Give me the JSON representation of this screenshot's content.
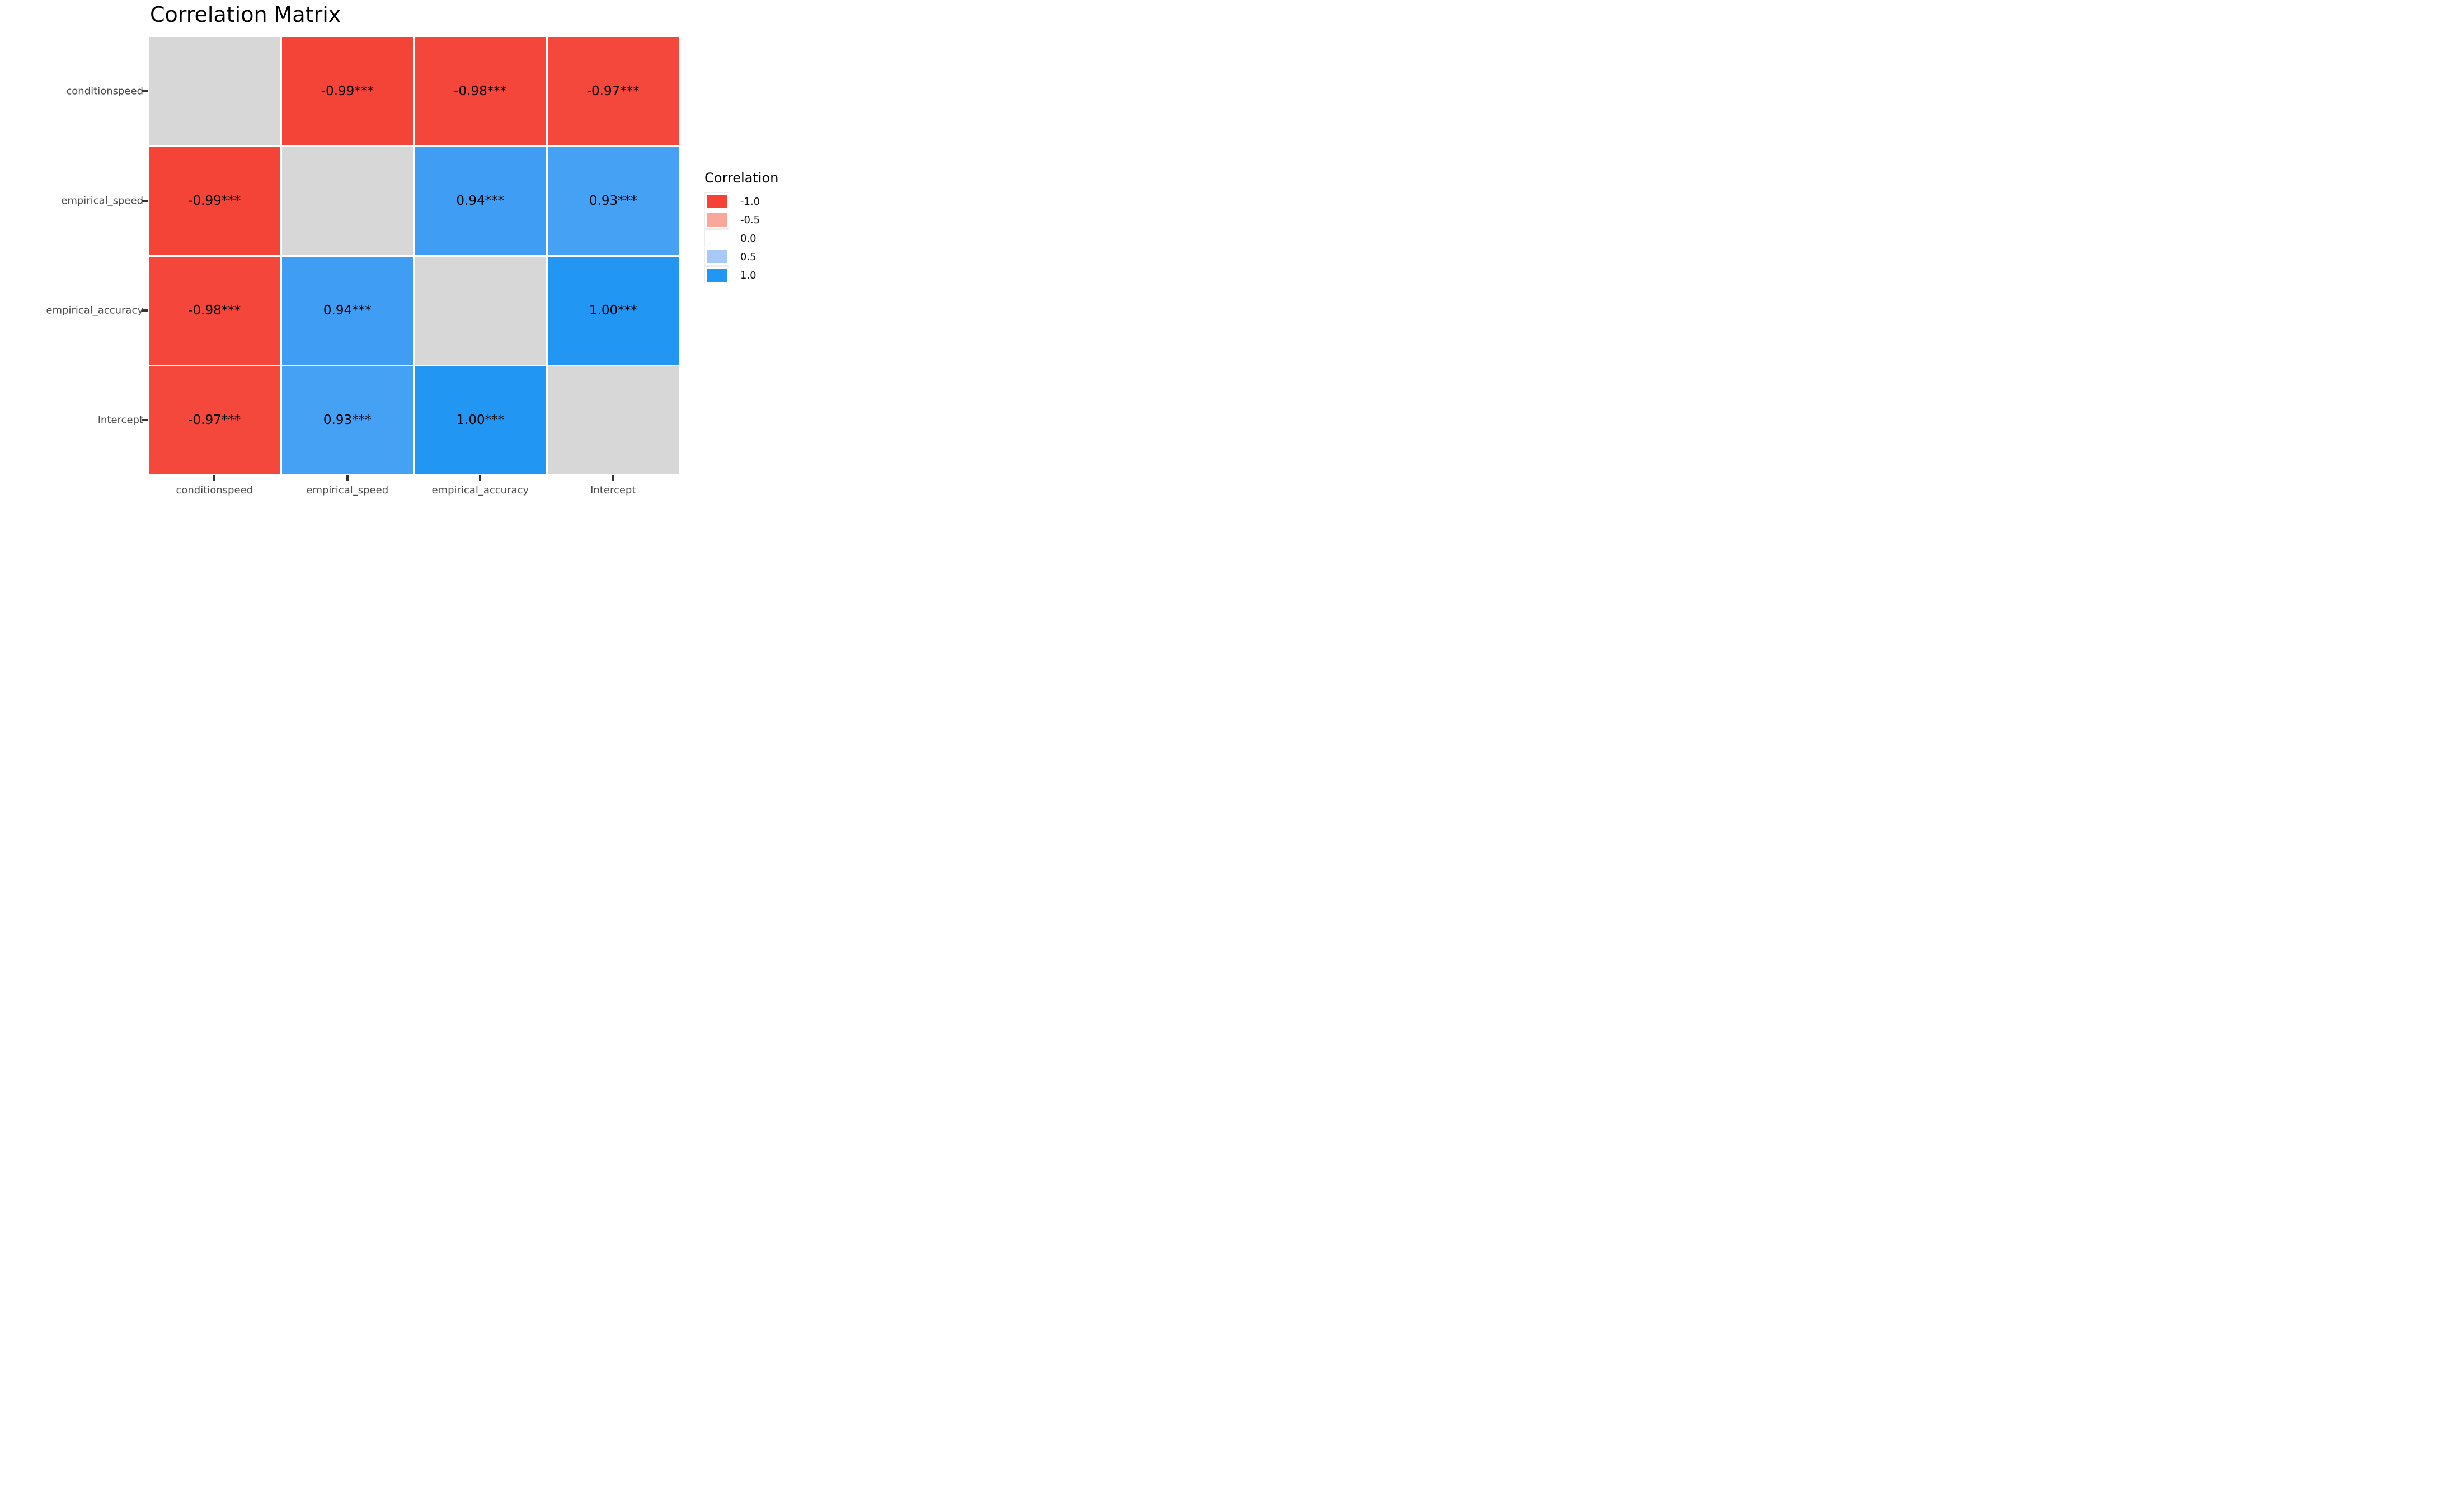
{
  "title": "Correlation Matrix",
  "legend": {
    "title": "Correlation",
    "entries": [
      {
        "label": "-1.0",
        "color": "#F44336"
      },
      {
        "label": "-0.5",
        "color": "#F9A79B"
      },
      {
        "label": "0.0",
        "color": "#FFFFFF"
      },
      {
        "label": "0.5",
        "color": "#A8C9F6"
      },
      {
        "label": "1.0",
        "color": "#2196F3"
      }
    ]
  },
  "colors": {
    "diagonal": "#D7D7D7",
    "negative_full": "#F44336",
    "positive_full": "#2196F3",
    "axis_text": "#4D4D4D",
    "cell_text": "#000000"
  },
  "chart_data": {
    "type": "heatmap",
    "title": "Correlation Matrix",
    "x_categories": [
      "conditionspeed",
      "empirical_speed",
      "empirical_accuracy",
      "Intercept"
    ],
    "y_categories": [
      "conditionspeed",
      "empirical_speed",
      "empirical_accuracy",
      "Intercept"
    ],
    "legend_title": "Correlation",
    "legend_ticks": [
      -1.0,
      -0.5,
      0.0,
      0.5,
      1.0
    ],
    "value_range": [
      -1.0,
      1.0
    ],
    "grid": false,
    "legend_position": "right",
    "cells": [
      [
        {
          "value": null,
          "label": "",
          "color": "#D7D7D7"
        },
        {
          "value": -0.99,
          "label": "-0.99***",
          "color": "#F44437"
        },
        {
          "value": -0.98,
          "label": "-0.98***",
          "color": "#F4463A"
        },
        {
          "value": -0.97,
          "label": "-0.97***",
          "color": "#F4483C"
        }
      ],
      [
        {
          "value": -0.99,
          "label": "-0.99***",
          "color": "#F44437"
        },
        {
          "value": null,
          "label": "",
          "color": "#D7D7D7"
        },
        {
          "value": 0.94,
          "label": "0.94***",
          "color": "#3F9EF3"
        },
        {
          "value": 0.93,
          "label": "0.93***",
          "color": "#45A1F3"
        }
      ],
      [
        {
          "value": -0.98,
          "label": "-0.98***",
          "color": "#F4463A"
        },
        {
          "value": 0.94,
          "label": "0.94***",
          "color": "#3F9EF3"
        },
        {
          "value": null,
          "label": "",
          "color": "#D7D7D7"
        },
        {
          "value": 1.0,
          "label": "1.00***",
          "color": "#2196F3"
        }
      ],
      [
        {
          "value": -0.97,
          "label": "-0.97***",
          "color": "#F4483C"
        },
        {
          "value": 0.93,
          "label": "0.93***",
          "color": "#45A1F3"
        },
        {
          "value": 1.0,
          "label": "1.00***",
          "color": "#2196F3"
        },
        {
          "value": null,
          "label": "",
          "color": "#D7D7D7"
        }
      ]
    ]
  }
}
